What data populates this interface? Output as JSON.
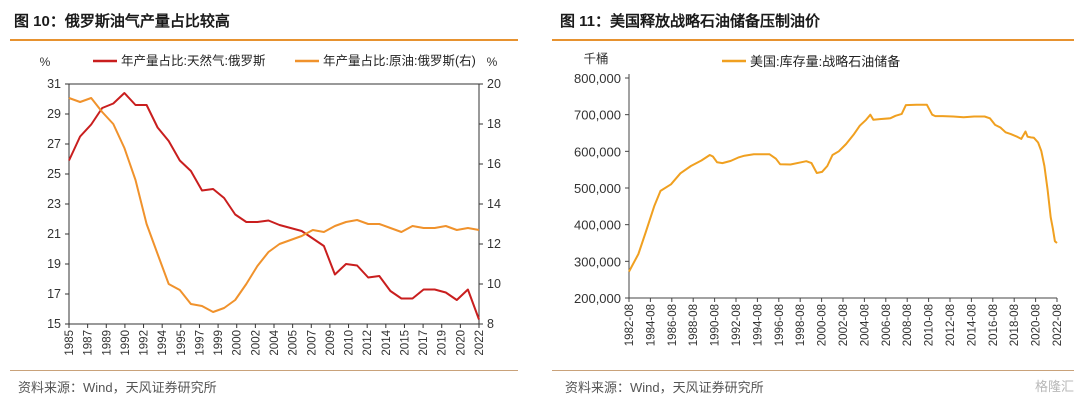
{
  "page": {
    "left_title": "图 10：俄罗斯油气产量占比较高",
    "right_title": "图 11：美国释放战略石油储备压制油价",
    "left_source": "资料来源：Wind，天风证券研究所",
    "right_source": "资料来源：Wind，天风证券研究所",
    "watermark": "格隆汇",
    "accent_color": "#e7922f"
  },
  "chart_data": [
    {
      "type": "line",
      "title": "",
      "y_unit_left": "%",
      "y_unit_right": "%",
      "ylim_left": [
        15,
        31
      ],
      "ylim_right": [
        8,
        20
      ],
      "yticks_left": [
        "15",
        "17",
        "19",
        "21",
        "23",
        "25",
        "27",
        "29",
        "31"
      ],
      "yticks_right": [
        "8",
        "10",
        "12",
        "14",
        "16",
        "18",
        "20"
      ],
      "xtick_labels": [
        "1985",
        "1987",
        "1989",
        "1990",
        "1992",
        "1994",
        "1995",
        "1997",
        "1999",
        "2000",
        "2002",
        "2004",
        "2005",
        "2007",
        "2009",
        "2010",
        "2012",
        "2014",
        "2015",
        "2017",
        "2019",
        "2020",
        "2022"
      ],
      "x": [
        1985,
        1986,
        1987,
        1988,
        1989,
        1990,
        1991,
        1992,
        1993,
        1994,
        1995,
        1996,
        1997,
        1998,
        1999,
        2000,
        2001,
        2002,
        2003,
        2004,
        2005,
        2006,
        2007,
        2008,
        2009,
        2010,
        2011,
        2012,
        2013,
        2014,
        2015,
        2016,
        2017,
        2018,
        2019,
        2020,
        2021,
        2022
      ],
      "legend_position": "top",
      "series": [
        {
          "name": "年产量占比:天然气:俄罗斯",
          "axis": "left",
          "color": "#c91e1e",
          "values": [
            25.9,
            27.5,
            28.3,
            29.4,
            29.7,
            30.4,
            29.6,
            29.6,
            28.1,
            27.2,
            25.9,
            25.2,
            23.9,
            24.0,
            23.4,
            22.3,
            21.8,
            21.8,
            21.9,
            21.6,
            21.4,
            21.2,
            20.7,
            20.2,
            18.3,
            19.0,
            18.9,
            18.1,
            18.2,
            17.2,
            16.7,
            16.7,
            17.3,
            17.3,
            17.1,
            16.6,
            17.3,
            15.3
          ]
        },
        {
          "name": "年产量占比:原油:俄罗斯(右)",
          "axis": "right",
          "color": "#f0922c",
          "values": [
            19.3,
            19.1,
            19.3,
            18.6,
            18.0,
            16.8,
            15.2,
            13.0,
            11.5,
            10.0,
            9.7,
            9.0,
            8.9,
            8.6,
            8.8,
            9.2,
            10.0,
            10.9,
            11.6,
            12.0,
            12.2,
            12.4,
            12.7,
            12.6,
            12.9,
            13.1,
            13.2,
            13.0,
            13.0,
            12.8,
            12.6,
            12.9,
            12.8,
            12.8,
            12.9,
            12.7,
            12.8,
            12.7
          ]
        }
      ]
    },
    {
      "type": "line",
      "title": "",
      "y_unit": "千桶",
      "ylim": [
        200000,
        800000
      ],
      "yticks": [
        "800,000",
        "700,000",
        "600,000",
        "500,000",
        "400,000",
        "300,000",
        "200,000"
      ],
      "xtick_labels": [
        "1982-08",
        "1984-08",
        "1986-08",
        "1988-08",
        "1990-08",
        "1992-08",
        "1994-08",
        "1996-08",
        "1998-08",
        "2000-08",
        "2002-08",
        "2004-08",
        "2006-08",
        "2008-08",
        "2010-08",
        "2012-08",
        "2014-08",
        "2016-08",
        "2018-08",
        "2020-08",
        "2022-08"
      ],
      "legend_position": "top",
      "series": [
        {
          "name": "美国:库存量:战略石油储备",
          "color": "#f0a020",
          "x": [
            1982.6,
            1983.5,
            1984.2,
            1985.0,
            1985.6,
            1986.6,
            1987.5,
            1988.5,
            1989.5,
            1990.3,
            1990.6,
            1991.0,
            1991.5,
            1992.3,
            1993.0,
            1993.6,
            1994.5,
            1995.3,
            1996.0,
            1996.6,
            1997.0,
            1998.0,
            1999.0,
            1999.5,
            2000.0,
            2000.5,
            2001.0,
            2001.5,
            2002.0,
            2002.6,
            2003.3,
            2004.0,
            2004.6,
            2005.2,
            2005.6,
            2005.9,
            2006.5,
            2007.5,
            2008.0,
            2008.6,
            2009.0,
            2010.0,
            2011.0,
            2011.5,
            2011.8,
            2012.5,
            2013.5,
            2014.5,
            2015.5,
            2016.5,
            2017.0,
            2017.5,
            2018.0,
            2018.5,
            2019.0,
            2019.6,
            2020.0,
            2020.4,
            2020.6,
            2020.9,
            2021.2,
            2021.6,
            2021.9,
            2022.2,
            2022.5,
            2022.8,
            2023.0,
            2023.2,
            2023.4
          ],
          "values": [
            272000,
            320000,
            380000,
            450000,
            492000,
            510000,
            540000,
            560000,
            575000,
            590000,
            586000,
            570000,
            568000,
            574000,
            583000,
            588000,
            592000,
            592000,
            592000,
            580000,
            565000,
            564000,
            570000,
            573000,
            568000,
            541000,
            544000,
            560000,
            590000,
            600000,
            620000,
            645000,
            670000,
            686000,
            700000,
            686000,
            688000,
            690000,
            697000,
            702000,
            726000,
            727000,
            727000,
            700000,
            696000,
            696000,
            695000,
            693000,
            695000,
            695000,
            690000,
            672000,
            665000,
            652000,
            647000,
            640000,
            634000,
            654000,
            640000,
            638000,
            637000,
            624000,
            601000,
            560000,
            495000,
            420000,
            390000,
            355000,
            350000
          ]
        }
      ]
    }
  ]
}
